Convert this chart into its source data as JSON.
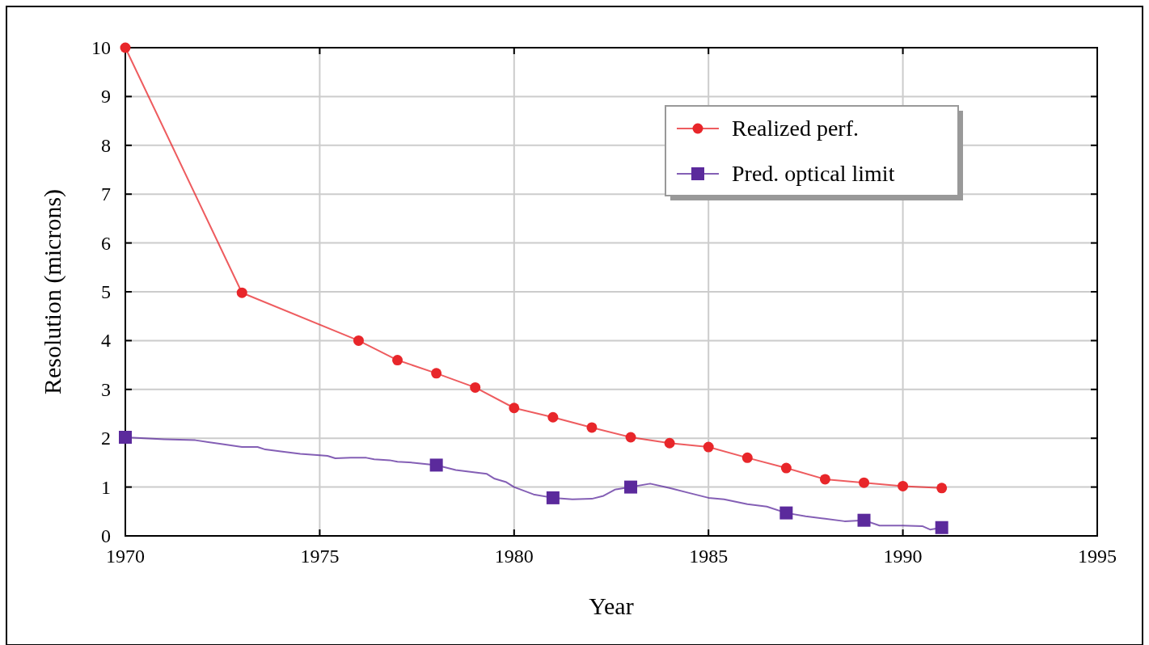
{
  "chart_data": {
    "type": "line",
    "xlabel": "Year",
    "ylabel": "Resolution (microns)",
    "xlim": [
      1970,
      1995
    ],
    "xticks": [
      1970,
      1975,
      1980,
      1985,
      1990,
      1995
    ],
    "ylim": [
      0,
      10
    ],
    "yticks": [
      0,
      1,
      2,
      3,
      4,
      5,
      6,
      7,
      8,
      9,
      10
    ],
    "grid": true,
    "legend": "top right",
    "series": [
      {
        "name": "Realized perf.",
        "color": "#e8262a",
        "marker": "circle",
        "x": [
          1970,
          1973,
          1976,
          1977,
          1978,
          1979,
          1980,
          1981,
          1982,
          1983,
          1984,
          1985,
          1986,
          1987,
          1988,
          1989,
          1990,
          1991
        ],
        "values": [
          10,
          4.98,
          4.0,
          3.6,
          3.33,
          3.04,
          2.62,
          2.43,
          2.22,
          2.02,
          1.9,
          1.82,
          1.6,
          1.39,
          1.16,
          1.09,
          1.02,
          0.98
        ]
      },
      {
        "name": "Pred. optical limit",
        "color": "#5b2a9c",
        "marker": "none",
        "x": [
          1970,
          1971,
          1971.8,
          1972.5,
          1973,
          1973.4,
          1973.6,
          1974,
          1974.5,
          1975,
          1975.2,
          1975.4,
          1975.8,
          1976.2,
          1976.4,
          1976.8,
          1977,
          1977.4,
          1978,
          1978.5,
          1979,
          1979.3,
          1979.5,
          1979.8,
          1980,
          1980.5,
          1981,
          1981.5,
          1982,
          1982.3,
          1982.6,
          1983,
          1983.5,
          1984,
          1984.5,
          1985,
          1985.4,
          1986,
          1986.5,
          1987,
          1987.5,
          1988,
          1988.5,
          1989,
          1989.4,
          1990,
          1990.5,
          1990.7,
          1991
        ],
        "values": [
          2.02,
          1.98,
          1.96,
          1.88,
          1.82,
          1.82,
          1.77,
          1.73,
          1.68,
          1.65,
          1.64,
          1.59,
          1.6,
          1.6,
          1.57,
          1.55,
          1.52,
          1.5,
          1.45,
          1.35,
          1.3,
          1.27,
          1.17,
          1.1,
          1.0,
          0.85,
          0.78,
          0.75,
          0.76,
          0.82,
          0.95,
          1.0,
          1.07,
          0.98,
          0.88,
          0.78,
          0.75,
          0.65,
          0.6,
          0.47,
          0.4,
          0.35,
          0.3,
          0.32,
          0.21,
          0.21,
          0.2,
          0.13,
          0.17
        ]
      },
      {
        "type": "scatter",
        "color": "#5b2a9c",
        "marker": "square",
        "x": [
          1970,
          1978,
          1981,
          1983,
          1987,
          1989,
          1991
        ],
        "values": [
          2.02,
          1.45,
          0.78,
          1.0,
          0.47,
          0.32,
          0.17
        ]
      }
    ]
  }
}
